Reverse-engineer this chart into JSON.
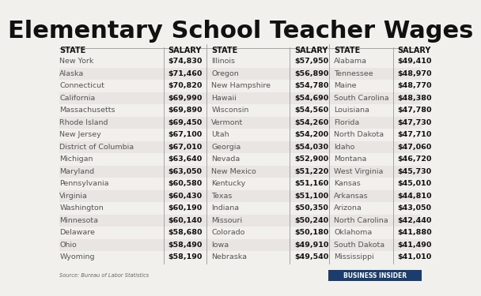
{
  "title": "Elementary School Teacher Wages",
  "col1": [
    [
      "New York",
      "$74,830"
    ],
    [
      "Alaska",
      "$71,460"
    ],
    [
      "Connecticut",
      "$70,820"
    ],
    [
      "California",
      "$69,990"
    ],
    [
      "Massachusetts",
      "$69,890"
    ],
    [
      "Rhode Island",
      "$69,450"
    ],
    [
      "New Jersey",
      "$67,100"
    ],
    [
      "District of Columbia",
      "$67,010"
    ],
    [
      "Michigan",
      "$63,640"
    ],
    [
      "Maryland",
      "$63,050"
    ],
    [
      "Pennsylvania",
      "$60,580"
    ],
    [
      "Virginia",
      "$60,430"
    ],
    [
      "Washington",
      "$60,190"
    ],
    [
      "Minnesota",
      "$60,140"
    ],
    [
      "Delaware",
      "$58,680"
    ],
    [
      "Ohio",
      "$58,490"
    ],
    [
      "Wyoming",
      "$58,190"
    ]
  ],
  "col2": [
    [
      "Illinois",
      "$57,950"
    ],
    [
      "Oregon",
      "$56,890"
    ],
    [
      "New Hampshire",
      "$54,780"
    ],
    [
      "Hawaii",
      "$54,690"
    ],
    [
      "Wisconsin",
      "$54,560"
    ],
    [
      "Vermont",
      "$54,260"
    ],
    [
      "Utah",
      "$54,200"
    ],
    [
      "Georgia",
      "$54,030"
    ],
    [
      "Nevada",
      "$52,900"
    ],
    [
      "New Mexico",
      "$51,220"
    ],
    [
      "Kentucky",
      "$51,160"
    ],
    [
      "Texas",
      "$51,100"
    ],
    [
      "Indiana",
      "$50,350"
    ],
    [
      "Missouri",
      "$50,240"
    ],
    [
      "Colorado",
      "$50,180"
    ],
    [
      "Iowa",
      "$49,910"
    ],
    [
      "Nebraska",
      "$49,540"
    ]
  ],
  "col3": [
    [
      "Alabama",
      "$49,410"
    ],
    [
      "Tennessee",
      "$48,970"
    ],
    [
      "Maine",
      "$48,770"
    ],
    [
      "South Carolina",
      "$48,380"
    ],
    [
      "Louisiana",
      "$47,780"
    ],
    [
      "Florida",
      "$47,730"
    ],
    [
      "North Dakota",
      "$47,710"
    ],
    [
      "Idaho",
      "$47,060"
    ],
    [
      "Montana",
      "$46,720"
    ],
    [
      "West Virginia",
      "$45,730"
    ],
    [
      "Kansas",
      "$45,010"
    ],
    [
      "Arkansas",
      "$44,810"
    ],
    [
      "Arizona",
      "$43,050"
    ],
    [
      "North Carolina",
      "$42,440"
    ],
    [
      "Oklahoma",
      "$41,880"
    ],
    [
      "South Dakota",
      "$41,490"
    ],
    [
      "Mississippi",
      "$41,010"
    ]
  ],
  "source": "Source: Bureau of Labor Statistics",
  "logo_text": "BUSINESS INSIDER",
  "bg_color": "#f2f0ed",
  "title_color": "#111111",
  "header_color": "#111111",
  "state_color": "#555555",
  "salary_color": "#111111",
  "divider_color": "#999999",
  "logo_bg": "#1a3d6e",
  "logo_text_color": "#ffffff"
}
